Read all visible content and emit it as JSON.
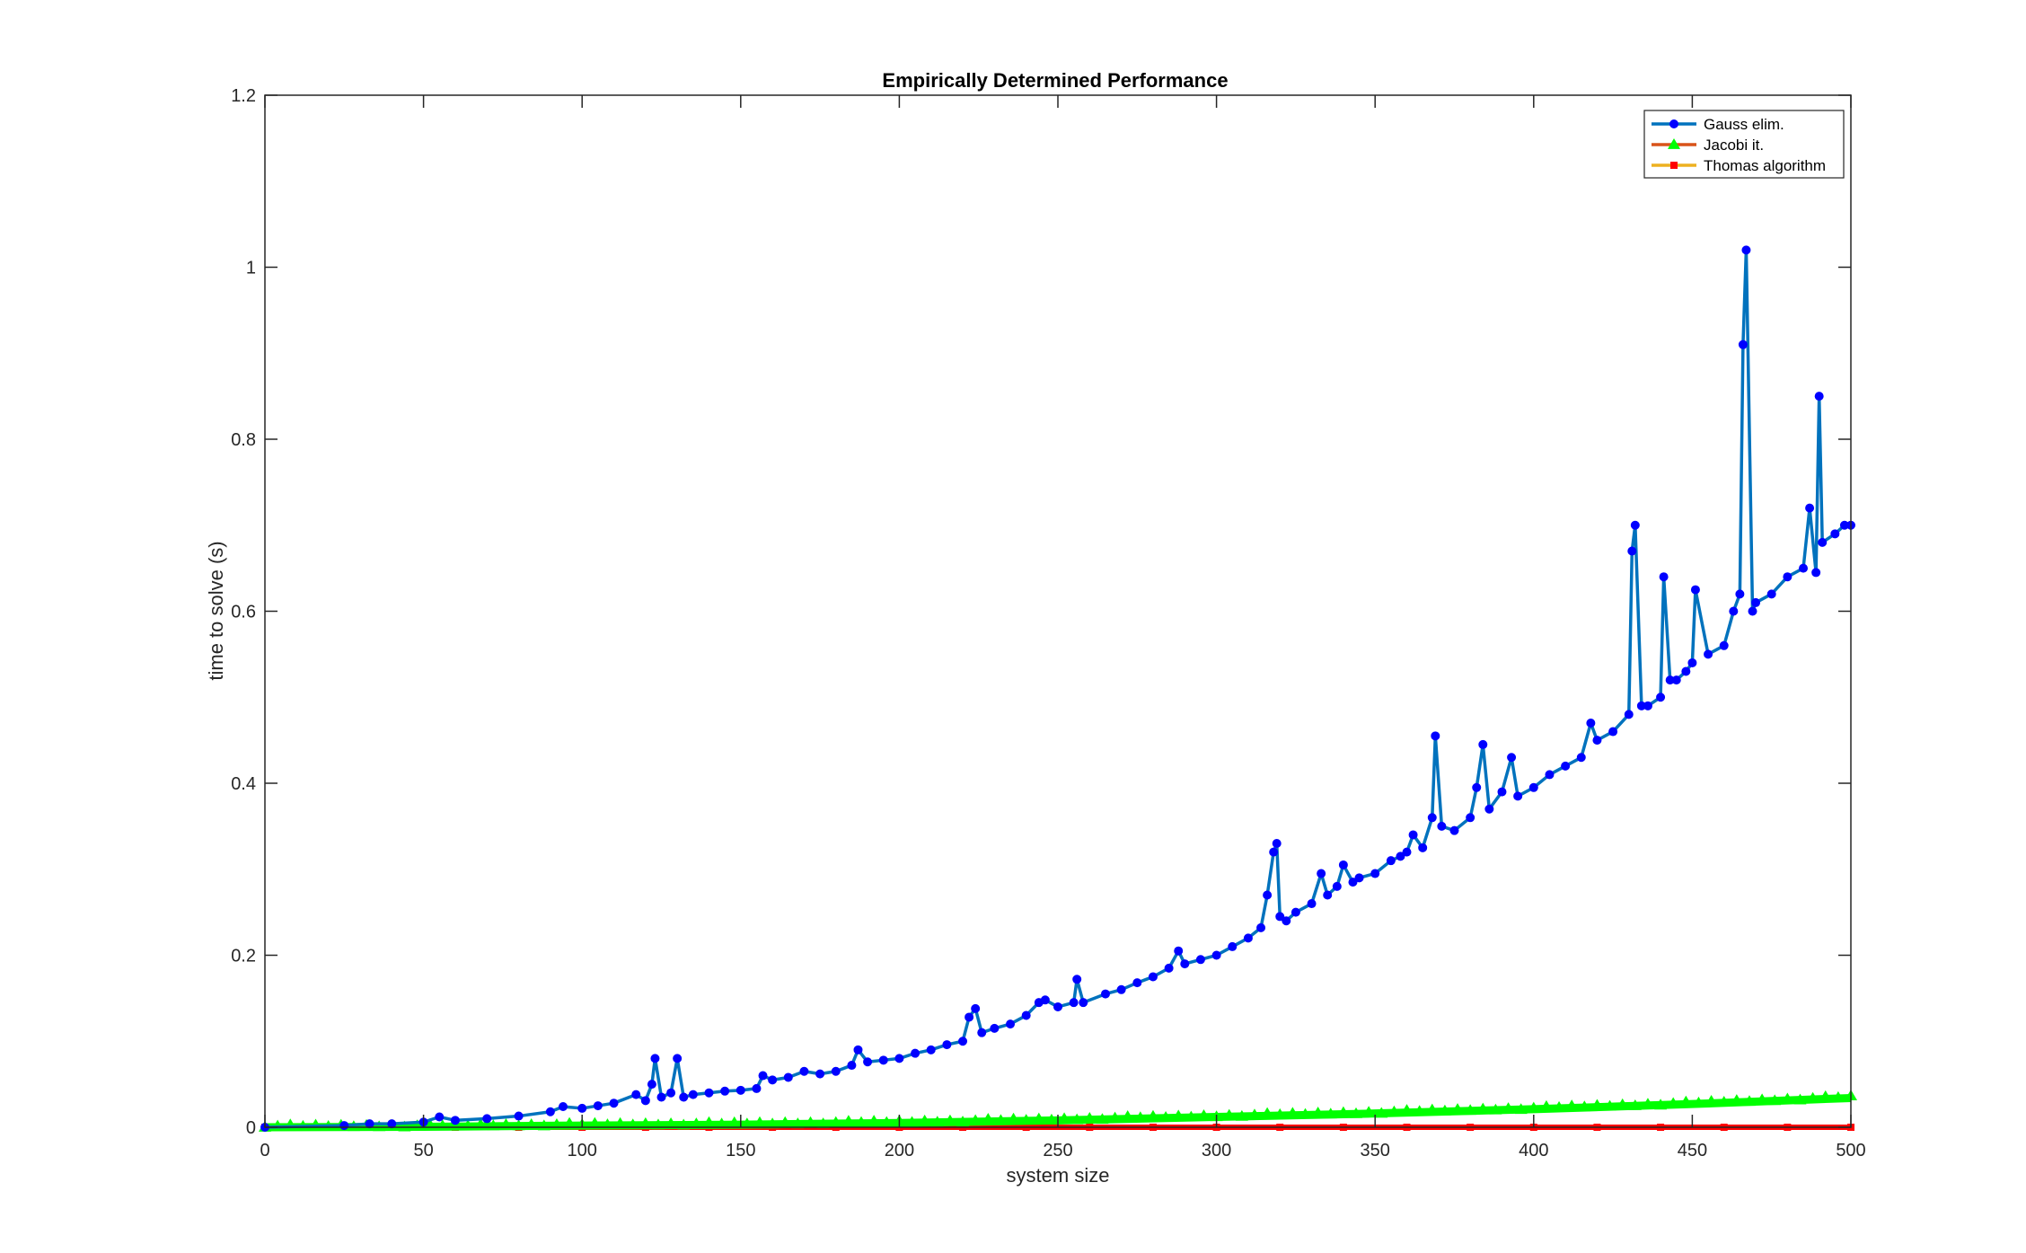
{
  "chart_data": {
    "type": "line",
    "title": "Empirically Determined Performance",
    "xlabel": "system size",
    "ylabel": "time to solve (s)",
    "xlim": [
      0,
      500
    ],
    "ylim": [
      0,
      1.2
    ],
    "xticks": [
      0,
      50,
      100,
      150,
      200,
      250,
      300,
      350,
      400,
      450,
      500
    ],
    "yticks": [
      0,
      0.2,
      0.4,
      0.6,
      0.8,
      1,
      1.2
    ],
    "xtick_labels": [
      "0",
      "50",
      "100",
      "150",
      "200",
      "250",
      "300",
      "350",
      "400",
      "450",
      "500"
    ],
    "ytick_labels": [
      "0",
      "0.2",
      "0.4",
      "0.6",
      "0.8",
      "1",
      "1.2"
    ],
    "grid": false,
    "legend_position": "top-right",
    "series": [
      {
        "name": "Gauss elim.",
        "line_color": "#0072BD",
        "marker_color": "#0000FF",
        "marker": "circle",
        "x": [
          0,
          25,
          33,
          40,
          50,
          55,
          60,
          70,
          80,
          90,
          94,
          100,
          105,
          110,
          117,
          120,
          122,
          123,
          125,
          128,
          130,
          132,
          135,
          140,
          145,
          150,
          155,
          157,
          160,
          165,
          170,
          175,
          180,
          185,
          187,
          190,
          195,
          200,
          205,
          210,
          215,
          220,
          222,
          224,
          226,
          230,
          235,
          240,
          244,
          246,
          250,
          255,
          256,
          258,
          265,
          270,
          275,
          280,
          285,
          288,
          290,
          295,
          300,
          305,
          310,
          314,
          316,
          318,
          319,
          320,
          322,
          325,
          330,
          333,
          335,
          338,
          340,
          343,
          345,
          350,
          355,
          358,
          360,
          362,
          365,
          368,
          369,
          371,
          375,
          380,
          382,
          384,
          386,
          390,
          393,
          395,
          400,
          405,
          410,
          415,
          418,
          420,
          425,
          430,
          431,
          432,
          434,
          436,
          440,
          441,
          443,
          445,
          448,
          450,
          451,
          455,
          460,
          463,
          465,
          466,
          467,
          469,
          470,
          475,
          480,
          485,
          487,
          489,
          490,
          491,
          495,
          498,
          500
        ],
        "values": [
          0.0,
          0.002,
          0.004,
          0.004,
          0.006,
          0.012,
          0.008,
          0.01,
          0.013,
          0.018,
          0.024,
          0.022,
          0.025,
          0.028,
          0.038,
          0.031,
          0.05,
          0.08,
          0.035,
          0.04,
          0.08,
          0.035,
          0.038,
          0.04,
          0.042,
          0.043,
          0.045,
          0.06,
          0.055,
          0.058,
          0.065,
          0.062,
          0.065,
          0.072,
          0.09,
          0.076,
          0.078,
          0.08,
          0.086,
          0.09,
          0.096,
          0.1,
          0.128,
          0.138,
          0.11,
          0.115,
          0.12,
          0.13,
          0.145,
          0.148,
          0.14,
          0.145,
          0.172,
          0.145,
          0.155,
          0.16,
          0.168,
          0.175,
          0.185,
          0.205,
          0.19,
          0.195,
          0.2,
          0.21,
          0.22,
          0.232,
          0.27,
          0.32,
          0.33,
          0.245,
          0.24,
          0.25,
          0.26,
          0.295,
          0.27,
          0.28,
          0.305,
          0.285,
          0.29,
          0.295,
          0.31,
          0.315,
          0.32,
          0.34,
          0.325,
          0.36,
          0.455,
          0.35,
          0.345,
          0.36,
          0.395,
          0.445,
          0.37,
          0.39,
          0.43,
          0.385,
          0.395,
          0.41,
          0.42,
          0.43,
          0.47,
          0.45,
          0.46,
          0.48,
          0.67,
          0.7,
          0.49,
          0.49,
          0.5,
          0.64,
          0.52,
          0.52,
          0.53,
          0.54,
          0.625,
          0.55,
          0.56,
          0.6,
          0.62,
          0.91,
          1.02,
          0.6,
          0.61,
          0.62,
          0.64,
          0.65,
          0.72,
          0.645,
          0.85,
          0.68,
          0.69,
          0.7,
          0.7
        ]
      },
      {
        "name": "Jacobi it.",
        "line_color": "#D95319",
        "marker_color": "#00FF00",
        "marker": "triangle",
        "x": [
          0,
          50,
          100,
          150,
          200,
          250,
          300,
          350,
          400,
          450,
          500
        ],
        "values": [
          0.0,
          0.0005,
          0.002,
          0.003,
          0.005,
          0.008,
          0.012,
          0.016,
          0.021,
          0.027,
          0.034
        ]
      },
      {
        "name": "Thomas algorithm",
        "line_color": "#EDB120",
        "marker_color": "#FF0000",
        "marker": "square",
        "x": [
          0,
          100,
          200,
          300,
          400,
          500
        ],
        "values": [
          0.0,
          0.0,
          0.0,
          0.0,
          0.0,
          0.0
        ]
      }
    ]
  }
}
